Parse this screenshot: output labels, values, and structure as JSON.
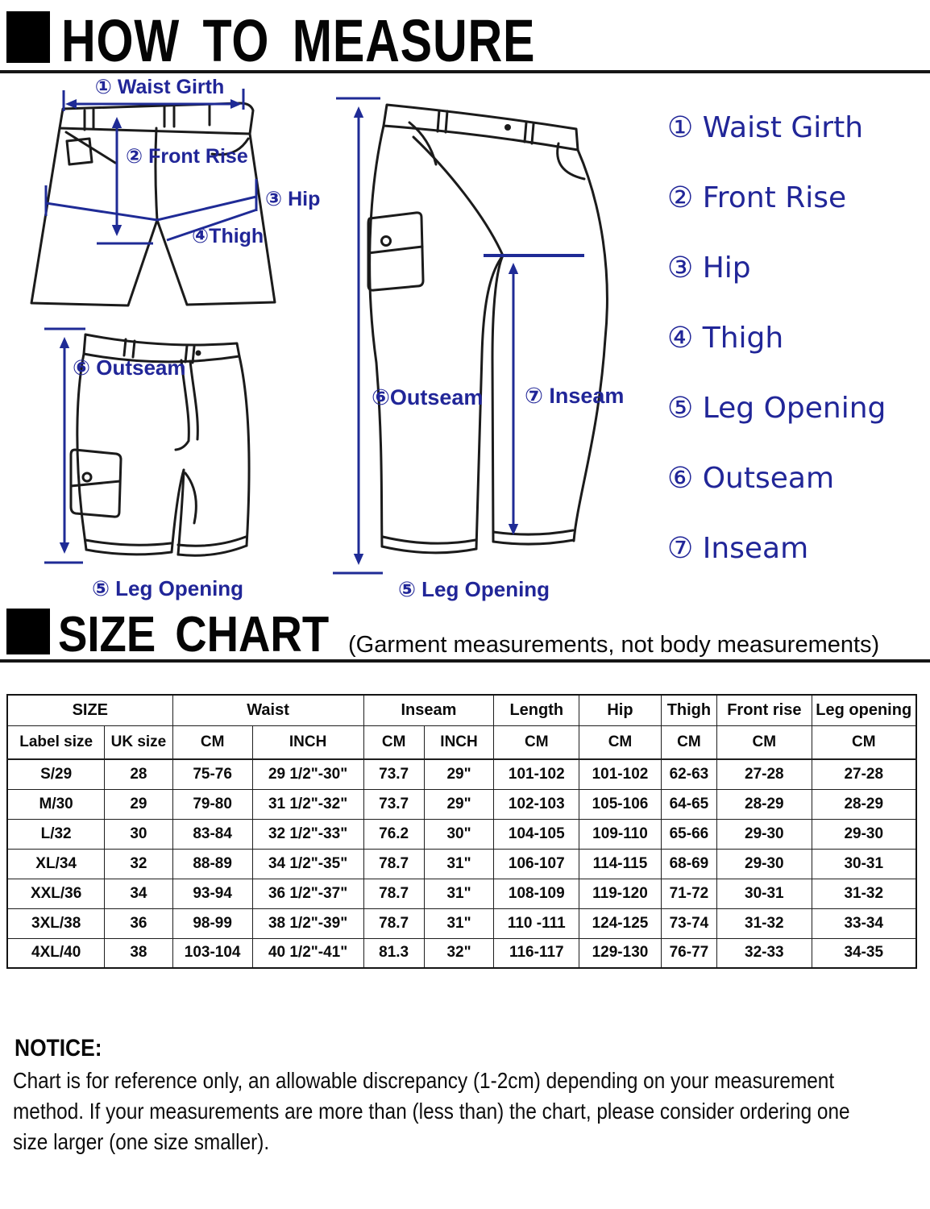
{
  "header": {
    "how_to_measure": "HOW TO MEASURE",
    "size_chart": "SIZE CHART",
    "size_chart_note": "(Garment measurements, not body measurements)"
  },
  "legend": {
    "items": [
      "① Waist Girth",
      "② Front Rise",
      "③ Hip",
      "④ Thigh",
      "⑤ Leg Opening",
      "⑥ Outseam",
      "⑦ Inseam"
    ]
  },
  "diagrams": {
    "front": {
      "waist_girth": "① Waist Girth",
      "front_rise": "② Front Rise",
      "hip": "③ Hip",
      "thigh": "④Thigh"
    },
    "shorts": {
      "outseam": "⑥ Outseam",
      "leg_opening": "⑤ Leg Opening"
    },
    "pants": {
      "outseam": "⑥Outseam",
      "inseam": "⑦ Inseam",
      "leg_opening": "⑤ Leg Opening"
    }
  },
  "size_chart": {
    "group_headers": [
      {
        "label": "SIZE",
        "span": 2
      },
      {
        "label": "Waist",
        "span": 2
      },
      {
        "label": "Inseam",
        "span": 2
      },
      {
        "label": "Length",
        "span": 1
      },
      {
        "label": "Hip",
        "span": 1
      },
      {
        "label": "Thigh",
        "span": 1
      },
      {
        "label": "Front rise",
        "span": 1
      },
      {
        "label": "Leg opening",
        "span": 1
      }
    ],
    "sub_headers": [
      "Label size",
      "UK size",
      "CM",
      "INCH",
      "CM",
      "INCH",
      "CM",
      "CM",
      "CM",
      "CM",
      "CM"
    ],
    "rows": [
      [
        "S/29",
        "28",
        "75-76",
        "29 1/2\"-30\"",
        "73.7",
        "29\"",
        "101-102",
        "101-102",
        "62-63",
        "27-28",
        "27-28"
      ],
      [
        "M/30",
        "29",
        "79-80",
        "31 1/2\"-32\"",
        "73.7",
        "29\"",
        "102-103",
        "105-106",
        "64-65",
        "28-29",
        "28-29"
      ],
      [
        "L/32",
        "30",
        "83-84",
        "32 1/2\"-33\"",
        "76.2",
        "30\"",
        "104-105",
        "109-110",
        "65-66",
        "29-30",
        "29-30"
      ],
      [
        "XL/34",
        "32",
        "88-89",
        "34 1/2\"-35\"",
        "78.7",
        "31\"",
        "106-107",
        "114-115",
        "68-69",
        "29-30",
        "30-31"
      ],
      [
        "XXL/36",
        "34",
        "93-94",
        "36 1/2\"-37\"",
        "78.7",
        "31\"",
        "108-109",
        "119-120",
        "71-72",
        "30-31",
        "31-32"
      ],
      [
        "3XL/38",
        "36",
        "98-99",
        "38 1/2\"-39\"",
        "78.7",
        "31\"",
        "110 -111",
        "124-125",
        "73-74",
        "31-32",
        "33-34"
      ],
      [
        "4XL/40",
        "38",
        "103-104",
        "40 1/2\"-41\"",
        "81.3",
        "32\"",
        "116-117",
        "129-130",
        "76-77",
        "32-33",
        "34-35"
      ]
    ]
  },
  "notice": {
    "title": "NOTICE:",
    "lines": [
      "Chart is for reference only, an allowable discrepancy (1-2cm) depending on your measurement",
      "method. If your measurements are more than (less than) the chart, please consider ordering one",
      "size larger (one size smaller)."
    ]
  },
  "colors": {
    "label_blue": "#212698",
    "arrow_blue": "#1f2b96",
    "outline_black": "#1b1b1b"
  }
}
